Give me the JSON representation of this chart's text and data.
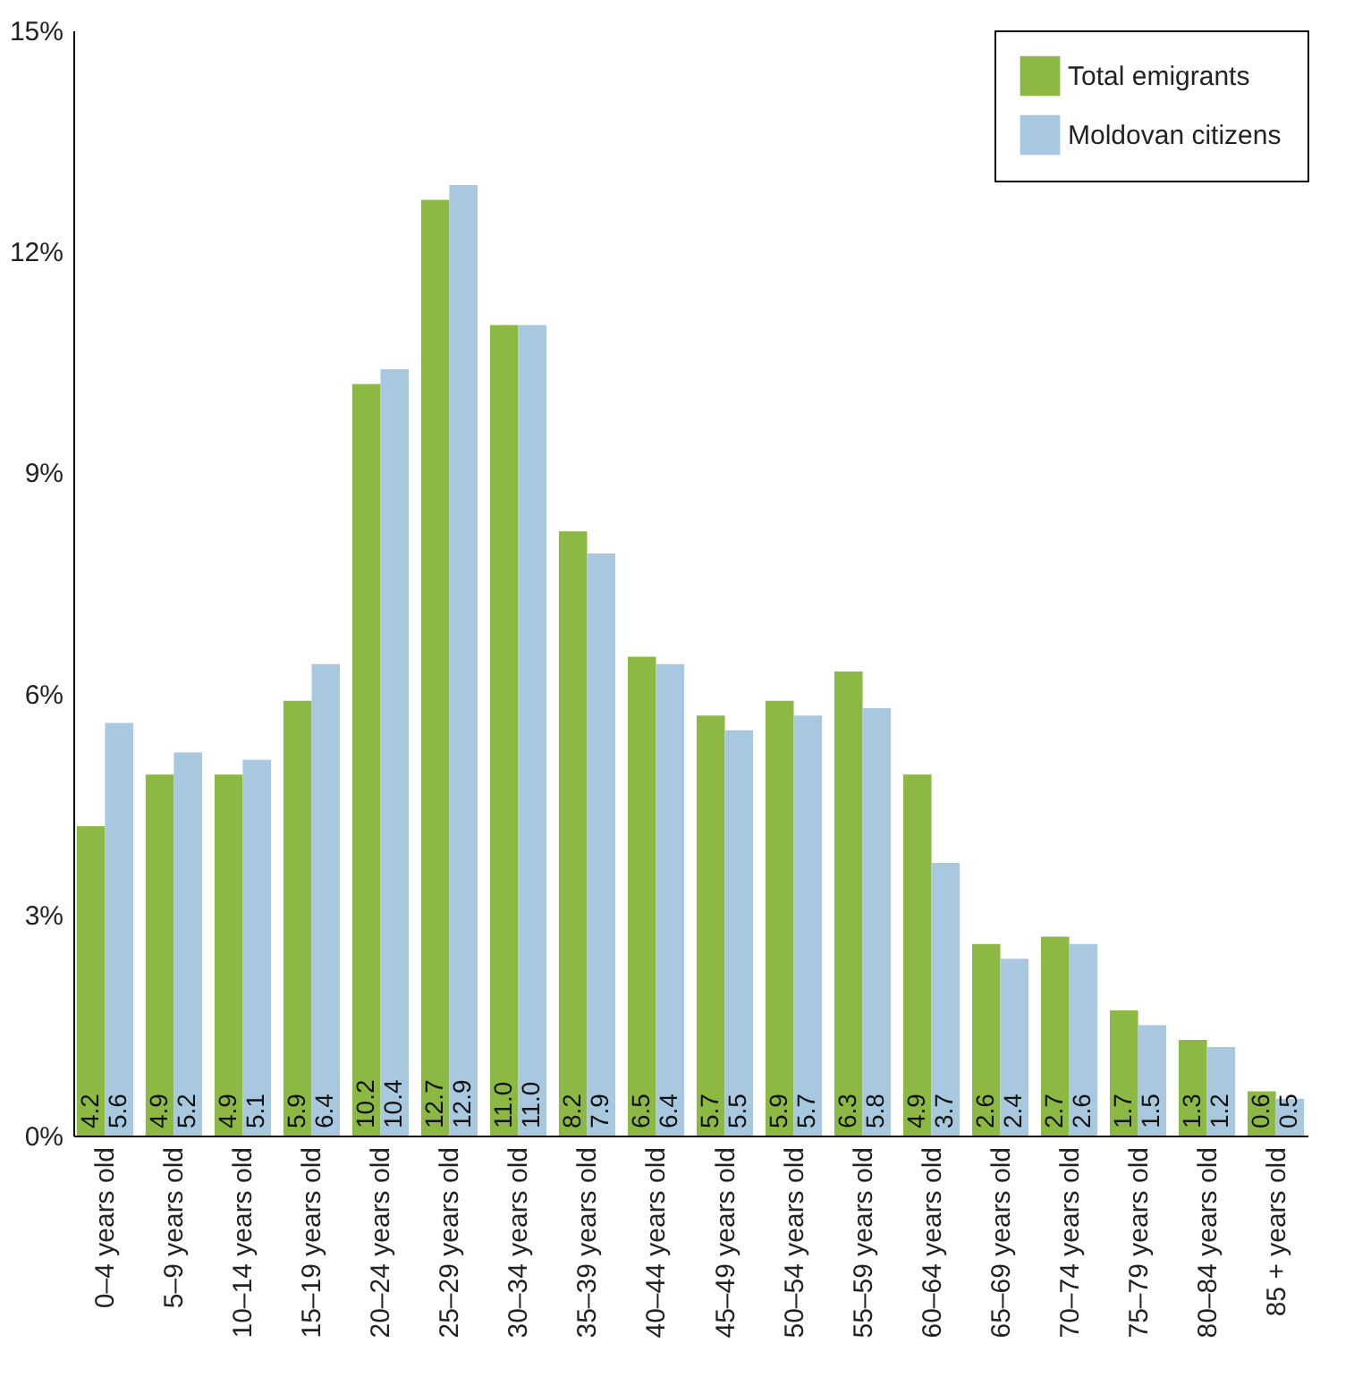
{
  "chart_data": {
    "type": "bar",
    "categories": [
      "0–4 years old",
      "5–9 years old",
      "10–14 years old",
      "15–19 years old",
      "20–24 years old",
      "25–29 years old",
      "30–34 years old",
      "35–39 years old",
      "40–44 years old",
      "45–49 years old",
      "50–54 years old",
      "55–59 years old",
      "60–64 years old",
      "65–69 years old",
      "70–74 years old",
      "75–79 years old",
      "80–84 years old",
      "85 + years old"
    ],
    "series": [
      {
        "name": "Total emigrants",
        "color": "#8db843",
        "values": [
          4.2,
          4.9,
          4.9,
          5.9,
          10.2,
          12.7,
          11.0,
          8.2,
          6.5,
          5.7,
          5.9,
          6.3,
          4.9,
          2.6,
          2.7,
          1.7,
          1.3,
          0.6
        ],
        "value_labels": [
          "4.2",
          "4.9",
          "4.9",
          "5.9",
          "10.2",
          "12.7",
          "11.0",
          "8.2",
          "6.5",
          "5.7",
          "5.9",
          "6.3",
          "4.9",
          "2.6",
          "2.7",
          "1.7",
          "1.3",
          "0.6"
        ]
      },
      {
        "name": "Moldovan citizens",
        "color": "#a8c8e0",
        "values": [
          5.6,
          5.2,
          5.1,
          6.4,
          10.4,
          12.9,
          11.0,
          7.9,
          6.4,
          5.5,
          5.7,
          5.8,
          3.7,
          2.4,
          2.6,
          1.5,
          1.2,
          0.5
        ],
        "value_labels": [
          "5.6",
          "5.2",
          "5.1",
          "6.4",
          "10.4",
          "12.9",
          "11.0",
          "7.9",
          "6.4",
          "5.5",
          "5.7",
          "5.8",
          "3.7",
          "2.4",
          "2.6",
          "1.5",
          "1.2",
          "0.5"
        ]
      }
    ],
    "ylim": [
      0,
      15
    ],
    "yticks": [
      {
        "value": 0,
        "label": "0%"
      },
      {
        "value": 3,
        "label": "3%"
      },
      {
        "value": 6,
        "label": "6%"
      },
      {
        "value": 9,
        "label": "9%"
      },
      {
        "value": 12,
        "label": "12%"
      },
      {
        "value": 15,
        "label": "15%"
      }
    ],
    "legend": "top right",
    "grid": false
  }
}
